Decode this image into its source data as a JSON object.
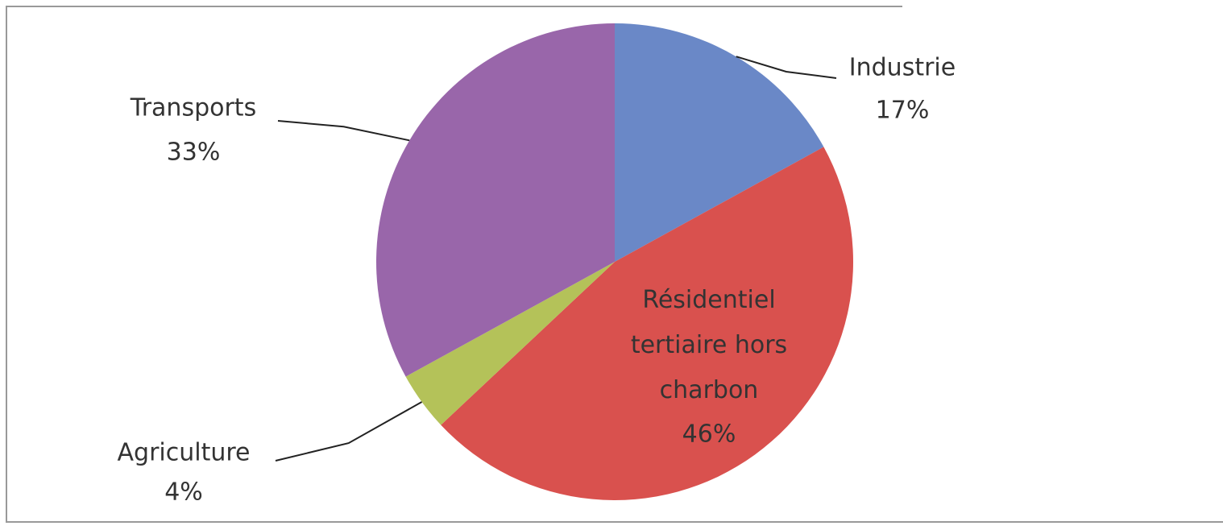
{
  "chart_data": {
    "type": "pie",
    "categories": [
      "Industrie",
      "Résidentiel tertiaire hors charbon",
      "Agriculture",
      "Transports"
    ],
    "values": [
      17,
      46,
      4,
      33
    ],
    "value_labels": [
      "17%",
      "46%",
      "4%",
      "33%"
    ],
    "colors": [
      "#6a88c7",
      "#d9514e",
      "#b4c259",
      "#9966aa"
    ]
  }
}
